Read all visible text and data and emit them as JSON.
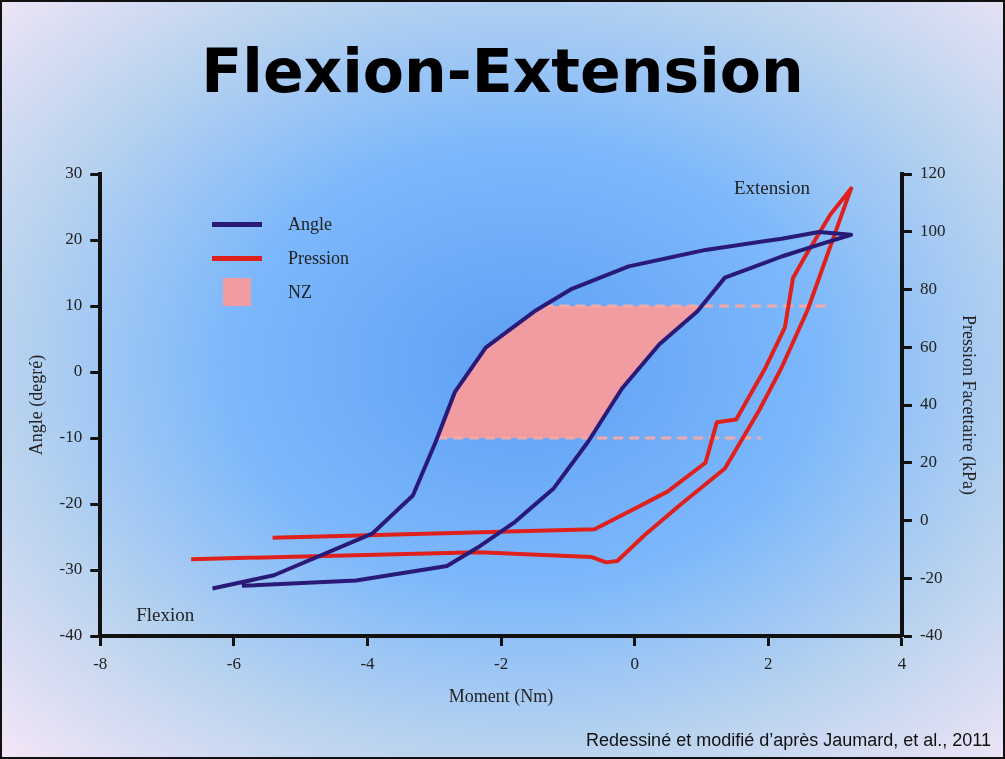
{
  "chart_data": {
    "type": "line",
    "title": "Flexion-Extension",
    "xlabel": "Moment (Nm)",
    "ylabel": "Angle (degré)",
    "y2label": "Pression Facettaire (kPa)",
    "xlim": [
      -8,
      4
    ],
    "xticks": [
      -8,
      -6,
      -4,
      -2,
      0,
      2,
      4
    ],
    "ylim": [
      -40,
      30
    ],
    "yticks": [
      -40,
      -30,
      -20,
      -10,
      0,
      10,
      20,
      30
    ],
    "y2lim": [
      -40,
      120
    ],
    "y2ticks": [
      -40,
      -20,
      0,
      20,
      40,
      60,
      80,
      100,
      120
    ],
    "grid": false,
    "legend": "top left",
    "marker": "none",
    "series": [
      {
        "name": "Angle",
        "color": "#2a1a78",
        "x": [
          -6.32,
          -5.4,
          -3.93,
          -3.32,
          -2.98,
          -2.69,
          -2.23,
          -1.5,
          -0.94,
          -0.09,
          1.06,
          2.2,
          2.76,
          3.24,
          2.76,
          2.2,
          1.35,
          0.94,
          0.37,
          -0.19,
          -0.7,
          -1.21,
          -1.79,
          -2.35,
          -2.81,
          -4.17,
          -5.88
        ],
        "values": [
          -32.8,
          -30.8,
          -24.5,
          -18.7,
          -10.6,
          -3.0,
          3.7,
          9.2,
          12.6,
          16.0,
          18.5,
          20.2,
          21.2,
          20.8,
          19.3,
          17.5,
          14.3,
          9.2,
          4.2,
          -2.5,
          -10.6,
          -17.6,
          -22.7,
          -26.6,
          -29.4,
          -31.6,
          -32.4
        ]
      },
      {
        "name": "Pression",
        "color": "#e0201c",
        "axis": "y2",
        "x": [
          -5.42,
          -0.6,
          -0.09,
          0.49,
          1.06,
          1.23,
          1.52,
          1.96,
          2.25,
          2.37,
          2.54,
          2.93,
          3.24,
          3.1,
          2.59,
          2.2,
          1.86,
          1.35,
          0.66,
          0.15,
          -0.26,
          -0.43,
          -0.65,
          -2.35,
          -6.64
        ],
        "values": [
          -6,
          -3,
          3,
          10,
          20,
          34,
          35,
          53,
          67,
          84,
          91,
          106,
          115,
          106,
          73,
          53,
          38,
          18,
          5,
          -5,
          -14,
          -14.5,
          -12.6,
          -11,
          -13.4
        ]
      }
    ],
    "bands": [
      {
        "axis": "y",
        "from": -10,
        "to": 10,
        "label": "NZ",
        "color": "#f09ca0"
      }
    ],
    "ref_lines": [
      {
        "axis": "y",
        "value": 10,
        "color": "#f4a8a8",
        "line_style": "dashed"
      },
      {
        "axis": "y",
        "value": -10,
        "color": "#f4a8a8",
        "line_style": "dashed"
      }
    ],
    "annotations": [
      "Extension",
      "Flexion",
      "Redessiné et modifié d’après Jaumard, et al., 2011"
    ]
  }
}
